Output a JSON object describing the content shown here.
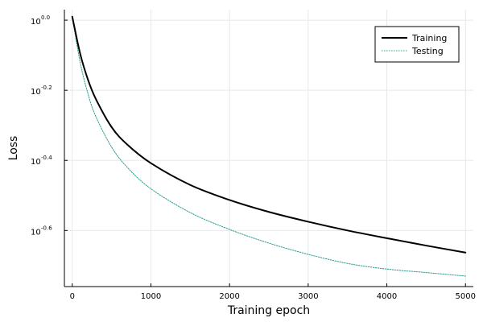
{
  "chart_data": {
    "type": "line",
    "title": "",
    "xlabel": "Training epoch",
    "ylabel": "Loss",
    "yscale": "log10",
    "xlim": [
      -100,
      5100
    ],
    "ylim_log10": [
      -0.76,
      0.03
    ],
    "x_ticks": [
      0,
      1000,
      2000,
      3000,
      4000,
      5000
    ],
    "y_ticks": [
      {
        "base": "10",
        "exponent": "-0.6",
        "log10": -0.6
      },
      {
        "base": "10",
        "exponent": "-0.4",
        "log10": -0.4
      },
      {
        "base": "10",
        "exponent": "-0.2",
        "log10": -0.2
      },
      {
        "base": "10",
        "exponent": "0.0",
        "log10": 0.0
      }
    ],
    "grid": true,
    "legend": {
      "position": "top-right"
    },
    "series": [
      {
        "name": "Training",
        "color": "#000000",
        "style": "solid",
        "x": [
          0,
          100,
          200,
          300,
          500,
          700,
          1000,
          1500,
          2000,
          2500,
          3000,
          3500,
          4000,
          4500,
          5000
        ],
        "y_log10": [
          0.01,
          -0.095,
          -0.17,
          -0.225,
          -0.305,
          -0.355,
          -0.408,
          -0.47,
          -0.513,
          -0.547,
          -0.575,
          -0.6,
          -0.622,
          -0.643,
          -0.663
        ]
      },
      {
        "name": "Testing",
        "color": "#2a9d8f",
        "style": "dotted",
        "x": [
          0,
          100,
          200,
          300,
          500,
          700,
          1000,
          1500,
          2000,
          2500,
          3000,
          3500,
          4000,
          4500,
          5000
        ],
        "y_log10": [
          0.01,
          -0.12,
          -0.21,
          -0.275,
          -0.362,
          -0.42,
          -0.481,
          -0.549,
          -0.597,
          -0.636,
          -0.668,
          -0.694,
          -0.71,
          -0.72,
          -0.73
        ]
      }
    ]
  }
}
